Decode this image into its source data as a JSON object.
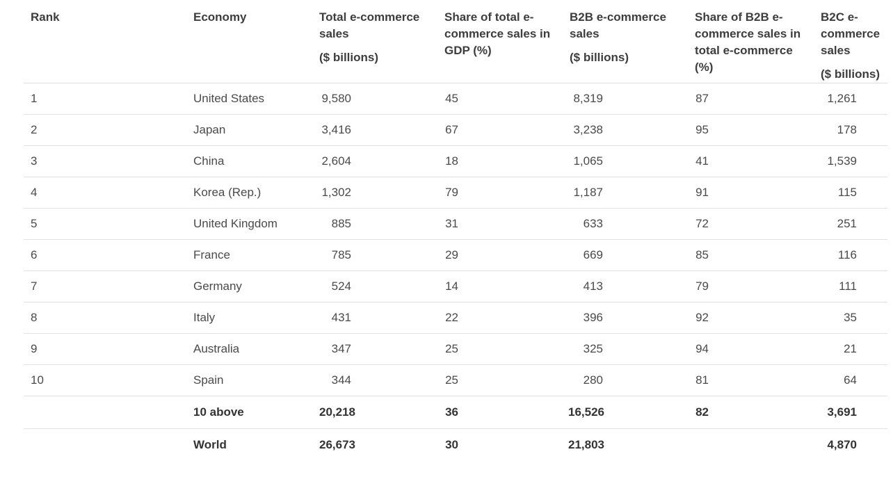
{
  "table": {
    "headers": {
      "rank": "Rank",
      "economy": "Economy",
      "total_sales": [
        "Total e-commerce",
        "sales"
      ],
      "total_sales_unit": "($ billions)",
      "share_gdp": [
        "Share of total e-",
        "commerce sales in",
        "GDP (%)"
      ],
      "b2b_sales": [
        "B2B e-commerce",
        "sales"
      ],
      "b2b_sales_unit": "($ billions)",
      "share_b2b": [
        "Share of B2B e-",
        "commerce sales in",
        "total e-commerce",
        "(%)"
      ],
      "b2c_sales": [
        "B2C e-",
        "commerce",
        "sales"
      ],
      "b2c_sales_unit": "($ billions)"
    },
    "rows": [
      {
        "rank": "1",
        "economy": "United States",
        "total": "9,580",
        "share_gdp": "45",
        "b2b": "8,319",
        "b2b_share": "87",
        "b2c": "1,261"
      },
      {
        "rank": "2",
        "economy": "Japan",
        "total": "3,416",
        "share_gdp": "67",
        "b2b": "3,238",
        "b2b_share": "95",
        "b2c": "178"
      },
      {
        "rank": "3",
        "economy": "China",
        "total": "2,604",
        "share_gdp": "18",
        "b2b": "1,065",
        "b2b_share": "41",
        "b2c": "1,539"
      },
      {
        "rank": "4",
        "economy": "Korea (Rep.)",
        "total": "1,302",
        "share_gdp": "79",
        "b2b": "1,187",
        "b2b_share": "91",
        "b2c": "115"
      },
      {
        "rank": "5",
        "economy": "United Kingdom",
        "total": "885",
        "share_gdp": "31",
        "b2b": "633",
        "b2b_share": "72",
        "b2c": "251"
      },
      {
        "rank": "6",
        "economy": "France",
        "total": "785",
        "share_gdp": "29",
        "b2b": "669",
        "b2b_share": "85",
        "b2c": "116"
      },
      {
        "rank": "7",
        "economy": "Germany",
        "total": "524",
        "share_gdp": "14",
        "b2b": "413",
        "b2b_share": "79",
        "b2c": "111"
      },
      {
        "rank": "8",
        "economy": "Italy",
        "total": "431",
        "share_gdp": "22",
        "b2b": "396",
        "b2b_share": "92",
        "b2c": "35"
      },
      {
        "rank": "9",
        "economy": "Australia",
        "total": "347",
        "share_gdp": "25",
        "b2b": "325",
        "b2b_share": "94",
        "b2c": "21"
      },
      {
        "rank": "10",
        "economy": "Spain",
        "total": "344",
        "share_gdp": "25",
        "b2b": "280",
        "b2b_share": "81",
        "b2c": "64"
      }
    ],
    "totals": [
      {
        "rank": "",
        "economy": "10 above",
        "total": "20,218",
        "share_gdp": "36",
        "b2b": "16,526",
        "b2b_share": "82",
        "b2c": "3,691"
      },
      {
        "rank": "",
        "economy": "World",
        "total": "26,673",
        "share_gdp": "30",
        "b2b": "21,803",
        "b2b_share": "",
        "b2c": "4,870"
      }
    ]
  }
}
